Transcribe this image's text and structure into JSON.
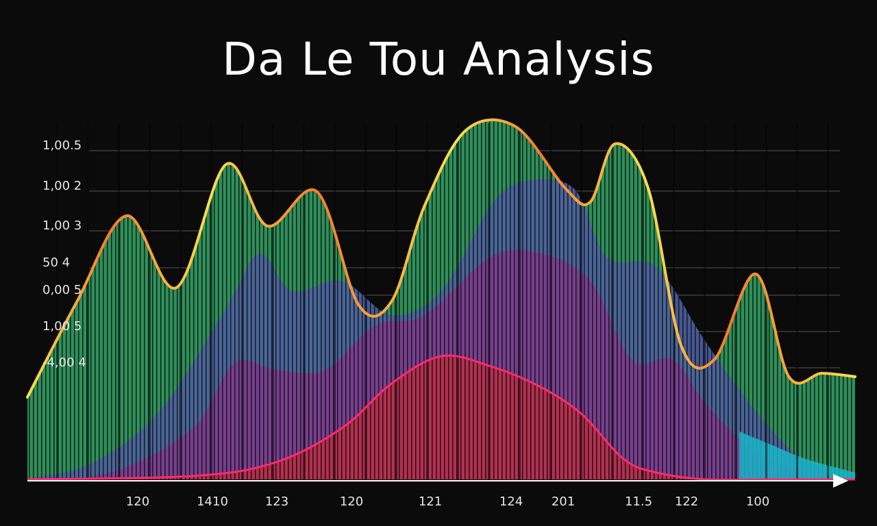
{
  "chart_data": {
    "type": "area",
    "title": "Da Le Tou Analysis",
    "y_tick_labels": [
      "1,00.5",
      "1,00 2",
      "1,00 3",
      "50 4",
      "0,00 5",
      "1,00 5",
      "-4,00 4"
    ],
    "x_tick_labels": [
      "120",
      "1410",
      "123",
      "120",
      "121",
      "124",
      "201",
      "11.5",
      "122",
      "100"
    ],
    "grid": true,
    "legend": "none",
    "colors": {
      "background": "#0b0b0b",
      "area_green": "#2e8b57",
      "area_blue": "#4a5e9e",
      "area_purple": "#7a3a8a",
      "area_red": "#b02e4a",
      "area_cyan": "#19b5c8",
      "outline_orange": "#ff7a2a",
      "outline_yellow": "#ffe14a",
      "outline_pink": "#ff2a6e",
      "grid": "#555555",
      "text": "#e6e6e6"
    },
    "series": [
      {
        "key": "green",
        "x": [
          0,
          6,
          12,
          18,
          24,
          29,
          35,
          40,
          44,
          48,
          53,
          59,
          65,
          68,
          71,
          75,
          79,
          83,
          88,
          92,
          96,
          100
        ],
        "y": [
          0.24,
          0.52,
          0.77,
          0.56,
          0.92,
          0.74,
          0.84,
          0.51,
          0.52,
          0.8,
          1.02,
          1.03,
          0.85,
          0.81,
          0.98,
          0.85,
          0.39,
          0.35,
          0.6,
          0.3,
          0.31,
          0.3
        ]
      },
      {
        "key": "blue",
        "x": [
          0,
          8,
          16,
          24,
          28,
          32,
          38,
          44,
          50,
          56,
          60,
          66,
          70,
          76,
          82,
          88,
          94,
          100
        ],
        "y": [
          0.0,
          0.05,
          0.2,
          0.5,
          0.66,
          0.55,
          0.58,
          0.48,
          0.55,
          0.8,
          0.87,
          0.85,
          0.65,
          0.62,
          0.4,
          0.2,
          0.05,
          0.0
        ]
      },
      {
        "key": "purple",
        "x": [
          0,
          10,
          20,
          25,
          30,
          36,
          42,
          48,
          56,
          62,
          68,
          73,
          78,
          82,
          88,
          94,
          100
        ],
        "y": [
          0.0,
          0.02,
          0.15,
          0.34,
          0.32,
          0.32,
          0.45,
          0.48,
          0.65,
          0.66,
          0.58,
          0.35,
          0.35,
          0.22,
          0.08,
          0.02,
          0.0
        ]
      },
      {
        "key": "red",
        "x": [
          0,
          20,
          30,
          38,
          44,
          50,
          56,
          62,
          67,
          72,
          76,
          82,
          90,
          100
        ],
        "y": [
          0.0,
          0.01,
          0.05,
          0.15,
          0.28,
          0.36,
          0.33,
          0.27,
          0.19,
          0.06,
          0.02,
          0.0,
          0.0,
          0.0
        ]
      },
      {
        "key": "cyan",
        "x": [
          86,
          90,
          94,
          100
        ],
        "y": [
          0.14,
          0.1,
          0.06,
          0.02
        ]
      }
    ]
  }
}
